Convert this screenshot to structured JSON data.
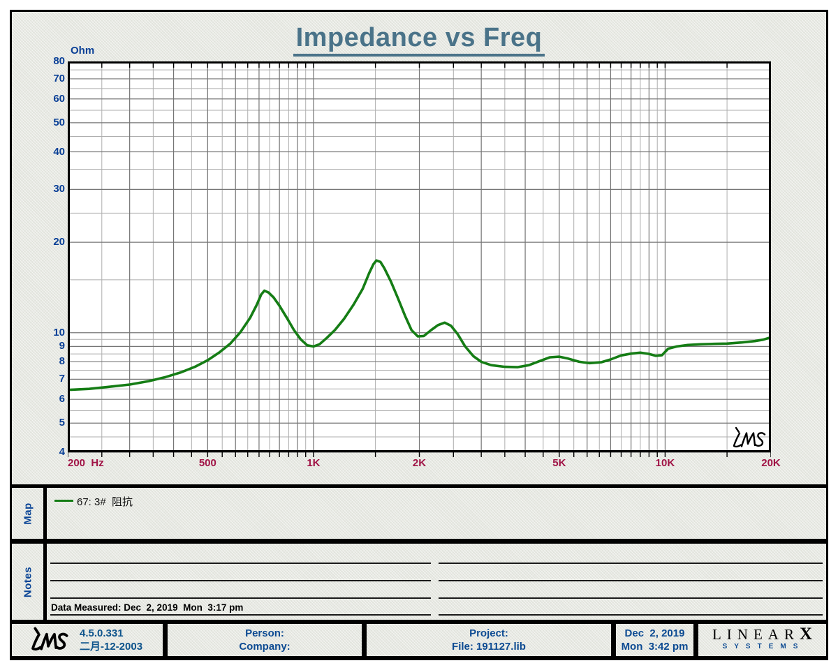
{
  "title": "Impedance vs Freq",
  "plot": {
    "y_unit": "Ohm",
    "y_ticks": [
      80,
      70,
      60,
      50,
      40,
      30,
      20,
      10,
      9,
      8,
      7,
      6,
      5,
      4
    ],
    "x_ticks": [
      {
        "f": 200,
        "t": "200  Hz",
        "align": "left"
      },
      {
        "f": 500,
        "t": "500"
      },
      {
        "f": 1000,
        "t": "1K"
      },
      {
        "f": 2000,
        "t": "2K"
      },
      {
        "f": 5000,
        "t": "5K"
      },
      {
        "f": 10000,
        "t": "10K"
      },
      {
        "f": 20000,
        "t": "20K"
      }
    ],
    "watermark": "LMS"
  },
  "chart_data": {
    "type": "line",
    "title": "Impedance vs Freq",
    "x_label": "Hz",
    "y_label": "Ohm",
    "x_scale": "log",
    "y_scale": "log",
    "x_range": [
      200,
      20000
    ],
    "y_range": [
      4,
      80
    ],
    "grid": "log major+minor (half-step) gridlines, on",
    "legend_position": "map panel below plot",
    "series": [
      {
        "name": "67: 3#  阻抗",
        "color": "#157d15",
        "points": [
          [
            200,
            6.45
          ],
          [
            230,
            6.5
          ],
          [
            260,
            6.6
          ],
          [
            300,
            6.72
          ],
          [
            340,
            6.9
          ],
          [
            380,
            7.12
          ],
          [
            420,
            7.38
          ],
          [
            460,
            7.7
          ],
          [
            500,
            8.1
          ],
          [
            540,
            8.6
          ],
          [
            580,
            9.2
          ],
          [
            620,
            10.05
          ],
          [
            660,
            11.2
          ],
          [
            690,
            12.4
          ],
          [
            710,
            13.4
          ],
          [
            725,
            13.8
          ],
          [
            745,
            13.6
          ],
          [
            770,
            13.1
          ],
          [
            800,
            12.3
          ],
          [
            840,
            11.2
          ],
          [
            880,
            10.2
          ],
          [
            920,
            9.5
          ],
          [
            960,
            9.08
          ],
          [
            1000,
            9.0
          ],
          [
            1040,
            9.15
          ],
          [
            1090,
            9.6
          ],
          [
            1150,
            10.2
          ],
          [
            1220,
            11.1
          ],
          [
            1300,
            12.4
          ],
          [
            1380,
            14.0
          ],
          [
            1440,
            15.8
          ],
          [
            1480,
            16.9
          ],
          [
            1510,
            17.4
          ],
          [
            1550,
            17.2
          ],
          [
            1590,
            16.4
          ],
          [
            1660,
            14.8
          ],
          [
            1740,
            13.0
          ],
          [
            1820,
            11.4
          ],
          [
            1900,
            10.2
          ],
          [
            1980,
            9.72
          ],
          [
            2060,
            9.75
          ],
          [
            2160,
            10.2
          ],
          [
            2260,
            10.6
          ],
          [
            2360,
            10.8
          ],
          [
            2460,
            10.55
          ],
          [
            2570,
            9.9
          ],
          [
            2700,
            9.0
          ],
          [
            2850,
            8.35
          ],
          [
            3000,
            8.0
          ],
          [
            3200,
            7.8
          ],
          [
            3500,
            7.7
          ],
          [
            3800,
            7.68
          ],
          [
            4100,
            7.8
          ],
          [
            4400,
            8.05
          ],
          [
            4700,
            8.28
          ],
          [
            5000,
            8.32
          ],
          [
            5300,
            8.2
          ],
          [
            5700,
            8.0
          ],
          [
            6100,
            7.92
          ],
          [
            6600,
            7.98
          ],
          [
            7000,
            8.15
          ],
          [
            7500,
            8.4
          ],
          [
            8000,
            8.52
          ],
          [
            8500,
            8.58
          ],
          [
            9000,
            8.5
          ],
          [
            9400,
            8.38
          ],
          [
            9800,
            8.42
          ],
          [
            10200,
            8.85
          ],
          [
            10800,
            9.0
          ],
          [
            11600,
            9.1
          ],
          [
            12600,
            9.15
          ],
          [
            13800,
            9.18
          ],
          [
            15000,
            9.2
          ],
          [
            16500,
            9.28
          ],
          [
            18000,
            9.38
          ],
          [
            19000,
            9.48
          ],
          [
            20000,
            9.65
          ]
        ]
      }
    ]
  },
  "map": {
    "panel_label": "Map",
    "legend_text": "67: 3#  阻抗"
  },
  "notes": {
    "panel_label": "Notes",
    "data_measured": "Data Measured: Dec  2, 2019  Mon  3:17 pm"
  },
  "footer": {
    "lms_logo": "LMS",
    "version": "4.5.0.331",
    "version_date": "二月-12-2003",
    "person_label": "Person:",
    "company_label": "Company:",
    "project_label": "Project:",
    "file_label": "File: 191127.lib",
    "date": "Dec  2, 2019",
    "time": "Mon  3:42 pm",
    "brand_linear": "LINEAR",
    "brand_x": "X",
    "brand_systems": "SYSTEMS"
  },
  "colors": {
    "curve_green": "#157d15",
    "axis_navy": "#093f96",
    "freq_maroon": "#a01245",
    "title_slate": "#4a7389",
    "footer_blue": "#0c4a92",
    "grid_major": "#757575",
    "grid_minor": "#aeaeae"
  }
}
